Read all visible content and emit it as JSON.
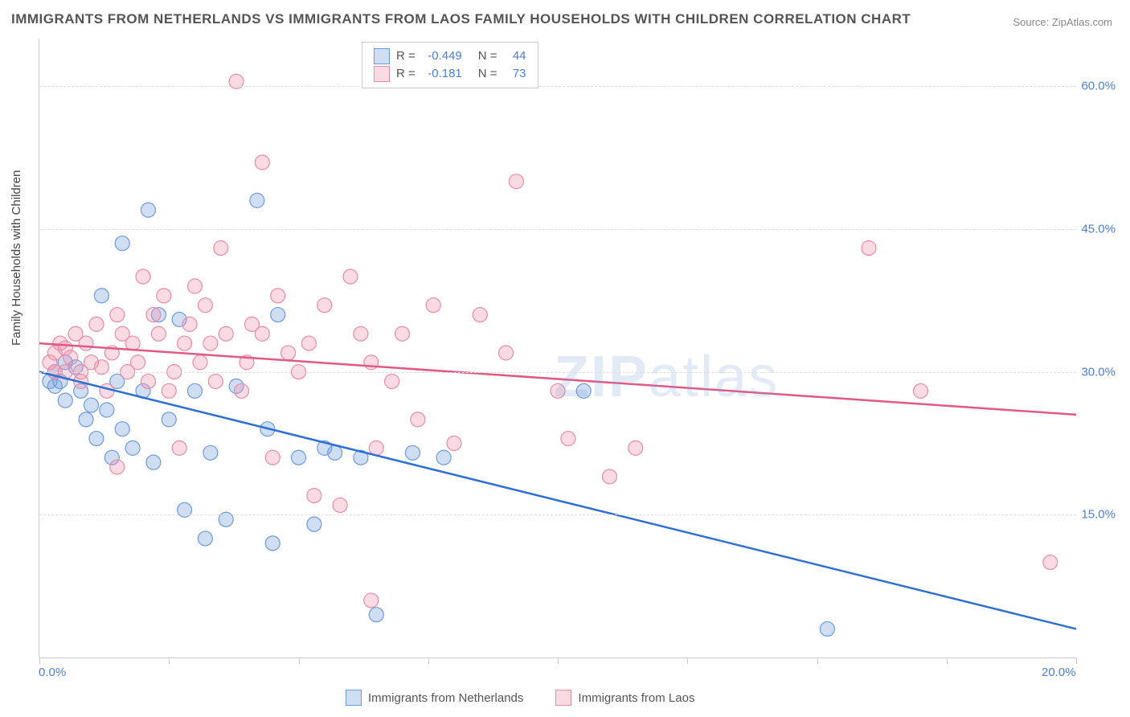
{
  "title": "IMMIGRANTS FROM NETHERLANDS VS IMMIGRANTS FROM LAOS FAMILY HOUSEHOLDS WITH CHILDREN CORRELATION CHART",
  "source": "Source: ZipAtlas.com",
  "watermark": "ZIPatlas",
  "chart": {
    "type": "scatter",
    "ylabel": "Family Households with Children",
    "xlim": [
      0,
      20
    ],
    "ylim": [
      0,
      65
    ],
    "x_ticks": [
      0,
      2.5,
      5,
      7.5,
      10,
      12.5,
      15,
      17.5,
      20
    ],
    "x_tick_labels": {
      "0": "0.0%",
      "20": "20.0%"
    },
    "y_gridlines": [
      15,
      30,
      45,
      60
    ],
    "y_tick_labels": {
      "15": "15.0%",
      "30": "30.0%",
      "45": "45.0%",
      "60": "60.0%"
    },
    "grid_color": "#dddddd",
    "axis_color": "#cccccc",
    "background": "#ffffff",
    "label_color": "#4a7fd8",
    "series": [
      {
        "name": "Immigrants from Netherlands",
        "color_fill": "rgba(120,160,220,0.35)",
        "color_stroke": "#6b9be0",
        "trend_color": "#2e6fd6",
        "R": "-0.449",
        "N": "44",
        "trend": {
          "x1": 0,
          "y1": 30,
          "x2": 20,
          "y2": 3
        },
        "points": [
          [
            0.2,
            29
          ],
          [
            0.3,
            28.5
          ],
          [
            0.3,
            30
          ],
          [
            0.4,
            29
          ],
          [
            0.5,
            27
          ],
          [
            0.5,
            31
          ],
          [
            0.7,
            30.5
          ],
          [
            0.8,
            28
          ],
          [
            0.9,
            25
          ],
          [
            1.0,
            26.5
          ],
          [
            1.1,
            23
          ],
          [
            1.2,
            38
          ],
          [
            1.3,
            26
          ],
          [
            1.4,
            21
          ],
          [
            1.5,
            29
          ],
          [
            1.6,
            24
          ],
          [
            1.6,
            43.5
          ],
          [
            1.8,
            22
          ],
          [
            2.0,
            28
          ],
          [
            2.1,
            47
          ],
          [
            2.2,
            20.5
          ],
          [
            2.3,
            36
          ],
          [
            2.5,
            25
          ],
          [
            2.7,
            35.5
          ],
          [
            2.8,
            15.5
          ],
          [
            3.0,
            28
          ],
          [
            3.2,
            12.5
          ],
          [
            3.3,
            21.5
          ],
          [
            3.6,
            14.5
          ],
          [
            3.8,
            28.5
          ],
          [
            4.2,
            48
          ],
          [
            4.4,
            24
          ],
          [
            4.5,
            12
          ],
          [
            4.6,
            36
          ],
          [
            5.0,
            21
          ],
          [
            5.3,
            14
          ],
          [
            5.5,
            22
          ],
          [
            5.7,
            21.5
          ],
          [
            6.2,
            21
          ],
          [
            6.5,
            4.5
          ],
          [
            7.2,
            21.5
          ],
          [
            7.8,
            21
          ],
          [
            10.5,
            28
          ],
          [
            15.2,
            3
          ]
        ]
      },
      {
        "name": "Immigrants from Laos",
        "color_fill": "rgba(240,150,175,0.35)",
        "color_stroke": "#e88ca6",
        "trend_color": "#e05a84",
        "R": "-0.181",
        "N": "73",
        "trend": {
          "x1": 0,
          "y1": 33,
          "x2": 20,
          "y2": 25.5
        },
        "points": [
          [
            0.2,
            31
          ],
          [
            0.3,
            30
          ],
          [
            0.3,
            32
          ],
          [
            0.4,
            33
          ],
          [
            0.5,
            30
          ],
          [
            0.5,
            32.5
          ],
          [
            0.6,
            31.5
          ],
          [
            0.7,
            34
          ],
          [
            0.8,
            30
          ],
          [
            0.8,
            29
          ],
          [
            0.9,
            33
          ],
          [
            1.0,
            31
          ],
          [
            1.1,
            35
          ],
          [
            1.2,
            30.5
          ],
          [
            1.3,
            28
          ],
          [
            1.4,
            32
          ],
          [
            1.5,
            36
          ],
          [
            1.5,
            20
          ],
          [
            1.6,
            34
          ],
          [
            1.7,
            30
          ],
          [
            1.8,
            33
          ],
          [
            1.9,
            31
          ],
          [
            2.0,
            40
          ],
          [
            2.1,
            29
          ],
          [
            2.2,
            36
          ],
          [
            2.3,
            34
          ],
          [
            2.4,
            38
          ],
          [
            2.5,
            28
          ],
          [
            2.6,
            30
          ],
          [
            2.7,
            22
          ],
          [
            2.8,
            33
          ],
          [
            2.9,
            35
          ],
          [
            3.0,
            39
          ],
          [
            3.1,
            31
          ],
          [
            3.2,
            37
          ],
          [
            3.3,
            33
          ],
          [
            3.4,
            29
          ],
          [
            3.5,
            43
          ],
          [
            3.6,
            34
          ],
          [
            3.8,
            60.5
          ],
          [
            3.9,
            28
          ],
          [
            4.0,
            31
          ],
          [
            4.1,
            35
          ],
          [
            4.3,
            52
          ],
          [
            4.3,
            34
          ],
          [
            4.5,
            21
          ],
          [
            4.6,
            38
          ],
          [
            4.8,
            32
          ],
          [
            5.0,
            30
          ],
          [
            5.2,
            33
          ],
          [
            5.3,
            17
          ],
          [
            5.5,
            37
          ],
          [
            5.8,
            16
          ],
          [
            6.0,
            40
          ],
          [
            6.2,
            34
          ],
          [
            6.4,
            31
          ],
          [
            6.4,
            6
          ],
          [
            6.5,
            22
          ],
          [
            6.8,
            29
          ],
          [
            7.0,
            34
          ],
          [
            7.3,
            25
          ],
          [
            7.6,
            37
          ],
          [
            8.0,
            22.5
          ],
          [
            8.5,
            36
          ],
          [
            9.0,
            32
          ],
          [
            9.2,
            50
          ],
          [
            10.0,
            28
          ],
          [
            10.2,
            23
          ],
          [
            11.0,
            19
          ],
          [
            11.5,
            22
          ],
          [
            16.0,
            43
          ],
          [
            17.0,
            28
          ],
          [
            19.5,
            10
          ]
        ]
      }
    ]
  }
}
